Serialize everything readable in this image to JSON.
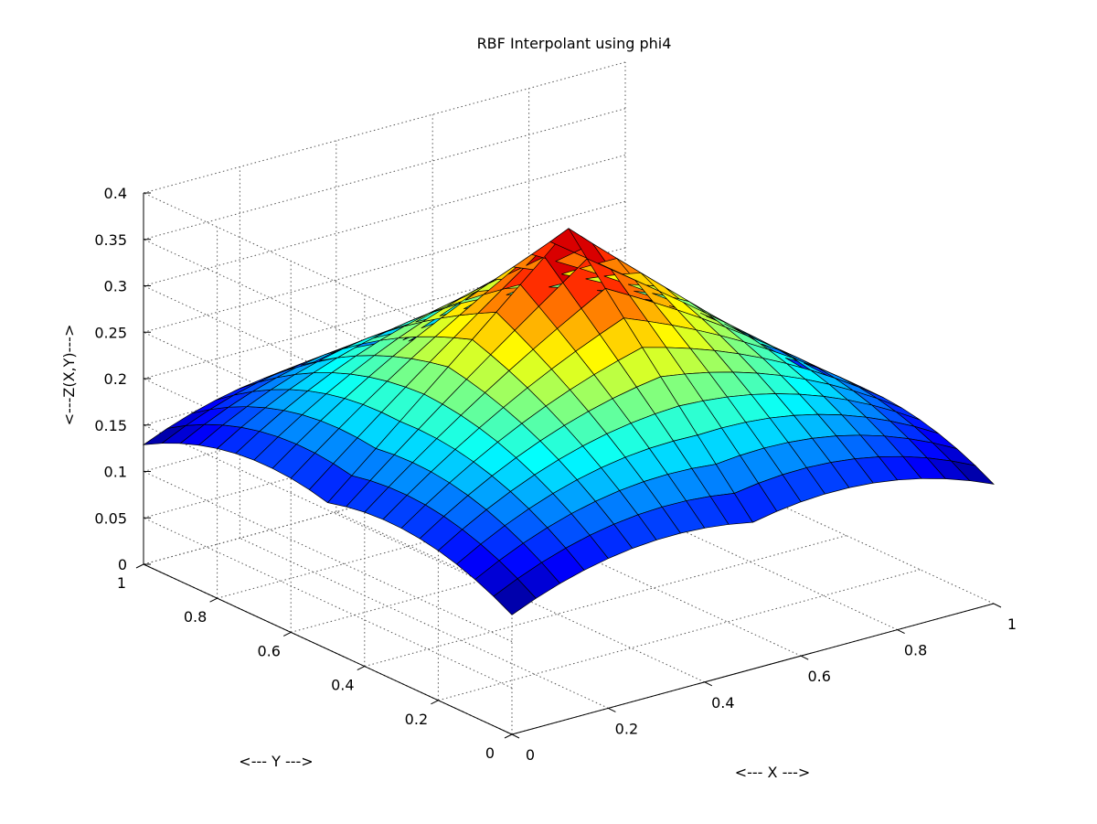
{
  "chart_data": {
    "type": "surface",
    "title": "RBF Interpolant using phi4",
    "xlabel": "<--- X --->",
    "ylabel": "<--- Y --->",
    "zlabel": "<---Z(X,Y)--->",
    "xlim": [
      0,
      1
    ],
    "ylim": [
      0,
      1
    ],
    "zlim": [
      0,
      0.4
    ],
    "grid": true,
    "colormap": "jet",
    "grid_resolution": 20,
    "z_at_center": 0.383,
    "z_at_corner": 0.033,
    "z_at_edge_midpoint": 0.158,
    "x_ticks": [
      "0",
      "0.2",
      "0.4",
      "0.6",
      "0.8",
      "1"
    ],
    "y_ticks": [
      "0",
      "0.2",
      "0.4",
      "0.6",
      "0.8",
      "1"
    ],
    "z_ticks": [
      "0",
      "0.05",
      "0.1",
      "0.15",
      "0.2",
      "0.25",
      "0.3",
      "0.35",
      "0.4"
    ]
  }
}
